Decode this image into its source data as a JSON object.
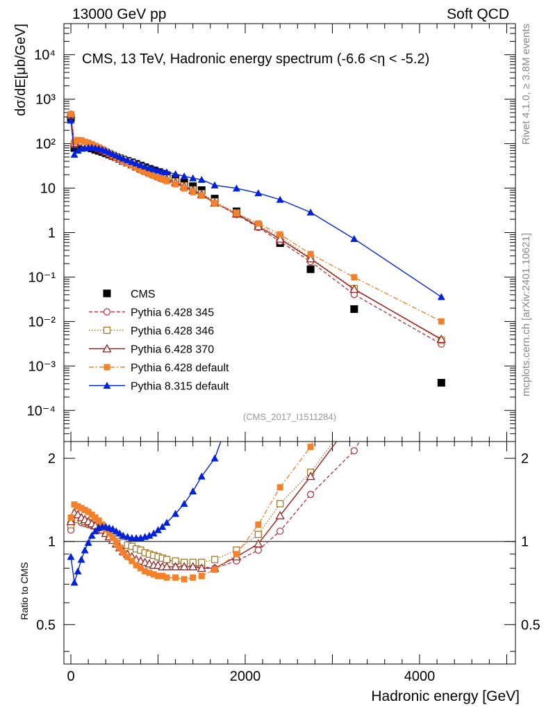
{
  "header": {
    "left": "13000 GeV pp",
    "right": "Soft QCD"
  },
  "side_text": {
    "version": "Rivet 4.1.0, ≥ 3.8M events",
    "source": "mcplots.cern.ch [arXiv:2401.10621]"
  },
  "chart_data": {
    "type": "line",
    "title": "CMS, 13 TeV, Hadronic energy spectrum (-6.6 <η < -5.2)",
    "analysis_id": "(CMS_2017_I1511284)",
    "xlabel": "Hadronic energy [GeV]",
    "ylabel": "dσ/dE[μb/GeV]",
    "ratio_ylabel": "Ratio to CMS",
    "x_ticks": [
      "0",
      "2000",
      "4000"
    ],
    "y_ticks": [
      "10⁻⁴",
      "10⁻³",
      "10⁻²",
      "10⁻¹",
      "1",
      "10",
      "10²",
      "10³",
      "10⁴"
    ],
    "ratio_ticks": [
      "0.5",
      "1",
      "2"
    ],
    "xlim": [
      -80,
      5100
    ],
    "ylim": [
      2e-05,
      50000
    ],
    "ratio_ylim": [
      0.36,
      2.3
    ],
    "legend_position": "middle-left",
    "series": [
      {
        "name": "CMS",
        "color": "#000000",
        "marker": "square-filled",
        "line": "none",
        "x": [
          0,
          40,
          80,
          120,
          160,
          200,
          240,
          280,
          320,
          360,
          400,
          440,
          480,
          520,
          560,
          600,
          650,
          700,
          750,
          800,
          850,
          900,
          950,
          1000,
          1050,
          1100,
          1200,
          1300,
          1400,
          1500,
          1650,
          1900,
          2150,
          2400,
          2750,
          3250,
          4250
        ],
        "values": [
          380,
          80,
          90,
          90,
          85,
          82,
          78,
          73,
          69,
          65,
          61,
          57,
          53,
          50,
          47,
          44,
          41,
          38,
          35,
          32,
          29.5,
          27,
          25,
          23,
          21,
          19.5,
          16.5,
          13.5,
          11,
          9,
          5.8,
          3.0,
          1.4,
          0.58,
          0.15,
          0.019,
          0.00042
        ]
      },
      {
        "name": "Pythia 6.428 345",
        "color": "#b03a48",
        "marker": "circle-open",
        "line": "dashed",
        "x": [
          0,
          40,
          80,
          120,
          160,
          200,
          240,
          280,
          320,
          360,
          400,
          440,
          480,
          520,
          560,
          600,
          650,
          700,
          750,
          800,
          850,
          900,
          950,
          1000,
          1050,
          1100,
          1200,
          1300,
          1400,
          1500,
          1650,
          1900,
          2150,
          2400,
          2750,
          3250,
          4250
        ],
        "values": [
          1.1,
          1.22,
          1.2,
          1.17,
          1.16,
          1.15,
          1.14,
          1.13,
          1.12,
          1.1,
          1.08,
          1.06,
          1.04,
          1.02,
          1.0,
          0.99,
          0.97,
          0.96,
          0.94,
          0.93,
          0.91,
          0.9,
          0.89,
          0.88,
          0.87,
          0.86,
          0.84,
          0.83,
          0.82,
          0.81,
          0.8,
          0.85,
          0.93,
          1.09,
          1.48,
          2.13,
          7.4
        ]
      },
      {
        "name": "Pythia 6.428 346",
        "color": "#a0782a",
        "marker": "square-open",
        "line": "dotted",
        "x": [
          0,
          40,
          80,
          120,
          160,
          200,
          240,
          280,
          320,
          360,
          400,
          440,
          480,
          520,
          560,
          600,
          650,
          700,
          750,
          800,
          850,
          900,
          950,
          1000,
          1050,
          1100,
          1200,
          1300,
          1400,
          1500,
          1650,
          1900,
          2150,
          2400,
          2750,
          3250,
          4250
        ],
        "values": [
          1.15,
          1.22,
          1.2,
          1.19,
          1.18,
          1.17,
          1.15,
          1.14,
          1.12,
          1.1,
          1.08,
          1.06,
          1.04,
          1.02,
          1.0,
          0.99,
          0.97,
          0.96,
          0.94,
          0.93,
          0.91,
          0.9,
          0.89,
          0.88,
          0.87,
          0.86,
          0.85,
          0.84,
          0.84,
          0.84,
          0.86,
          0.93,
          1.06,
          1.37,
          1.78,
          2.9,
          9.0
        ]
      },
      {
        "name": "Pythia 6.428 370",
        "color": "#9b1c1c",
        "marker": "triangle-open",
        "line": "solid",
        "x": [
          0,
          40,
          80,
          120,
          160,
          200,
          240,
          280,
          320,
          360,
          400,
          440,
          480,
          520,
          560,
          600,
          650,
          700,
          750,
          800,
          850,
          900,
          950,
          1000,
          1050,
          1100,
          1200,
          1300,
          1400,
          1500,
          1650,
          1900,
          2150,
          2400,
          2750,
          3250,
          4250
        ],
        "values": [
          1.18,
          1.27,
          1.25,
          1.22,
          1.2,
          1.18,
          1.16,
          1.14,
          1.12,
          1.1,
          1.07,
          1.04,
          1.01,
          0.98,
          0.95,
          0.92,
          0.9,
          0.88,
          0.86,
          0.85,
          0.84,
          0.83,
          0.82,
          0.82,
          0.81,
          0.81,
          0.81,
          0.81,
          0.81,
          0.8,
          0.8,
          0.88,
          0.98,
          1.24,
          1.72,
          2.8,
          9.5
        ]
      },
      {
        "name": "Pythia 6.428 default",
        "color": "#f5802a",
        "marker": "square-filled",
        "line": "dashdot",
        "x": [
          0,
          40,
          80,
          120,
          160,
          200,
          240,
          280,
          320,
          360,
          400,
          440,
          480,
          520,
          560,
          600,
          650,
          700,
          750,
          800,
          850,
          900,
          950,
          1000,
          1050,
          1100,
          1200,
          1300,
          1400,
          1500,
          1650,
          1900,
          2150,
          2400,
          2750,
          3250,
          4250
        ],
        "values": [
          1.22,
          1.36,
          1.34,
          1.32,
          1.3,
          1.28,
          1.25,
          1.22,
          1.19,
          1.15,
          1.11,
          1.07,
          1.03,
          0.99,
          0.95,
          0.91,
          0.88,
          0.85,
          0.82,
          0.8,
          0.78,
          0.77,
          0.76,
          0.75,
          0.75,
          0.74,
          0.74,
          0.73,
          0.74,
          0.75,
          0.79,
          0.9,
          1.15,
          1.57,
          2.2,
          5.2,
          24.0
        ]
      },
      {
        "name": "Pythia 8.315 default",
        "color": "#0022dd",
        "marker": "triangle-filled",
        "line": "solid",
        "x": [
          0,
          40,
          80,
          120,
          160,
          200,
          240,
          280,
          320,
          360,
          400,
          440,
          480,
          520,
          560,
          600,
          650,
          700,
          750,
          800,
          850,
          900,
          950,
          1000,
          1050,
          1100,
          1200,
          1300,
          1400,
          1500,
          1650,
          1900,
          2150,
          2400,
          2750,
          3250,
          4250
        ],
        "values": [
          0.88,
          0.71,
          0.78,
          0.86,
          0.93,
          0.99,
          1.05,
          1.09,
          1.12,
          1.13,
          1.13,
          1.12,
          1.11,
          1.09,
          1.07,
          1.05,
          1.04,
          1.03,
          1.03,
          1.03,
          1.04,
          1.05,
          1.07,
          1.1,
          1.13,
          1.17,
          1.26,
          1.37,
          1.52,
          1.72,
          2.0,
          3.3,
          5.5,
          9.5,
          19.0,
          38.0,
          85.0
        ]
      }
    ]
  }
}
